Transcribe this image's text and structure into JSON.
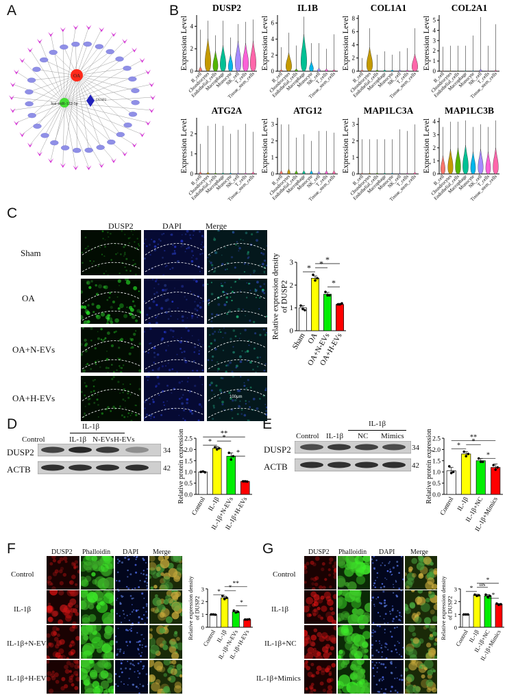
{
  "panels": {
    "A": {
      "label": "A",
      "nodes": {
        "center1": "OA",
        "center2": "hsa-miR-122-5p",
        "center3": "DUSP2"
      }
    },
    "B": {
      "label": "B",
      "ylabel": "Expression Level",
      "cell_types": [
        "B_cell",
        "Chondrocytes",
        "Endothelial_cells",
        "Macrophage",
        "Monocyte",
        "NK_cell",
        "T_cells",
        "Tissue_stem_cells"
      ],
      "genes": [
        {
          "name": "DUSP2",
          "yticks": [
            "0",
            "2",
            "4"
          ],
          "ymax": 5
        },
        {
          "name": "IL1B",
          "yticks": [
            "0",
            "2",
            "4",
            "6"
          ],
          "ymax": 7
        },
        {
          "name": "COL1A1",
          "yticks": [
            "0",
            "2",
            "4",
            "6",
            "8"
          ],
          "ymax": 8.5
        },
        {
          "name": "COL2A1",
          "yticks": [
            "0",
            "1",
            "2",
            "3",
            "4",
            "5"
          ],
          "ymax": 5.5
        },
        {
          "name": "ATG2A",
          "yticks": [
            "0",
            "1",
            "2"
          ],
          "ymax": 2.8
        },
        {
          "name": "ATG12",
          "yticks": [
            "0",
            "1",
            "2",
            "3"
          ],
          "ymax": 3.4
        },
        {
          "name": "MAP1LC3A",
          "yticks": [
            "0",
            "1",
            "2",
            "3"
          ],
          "ymax": 3.4
        },
        {
          "name": "MAP1LC3B",
          "yticks": [
            "0",
            "1",
            "2",
            "3",
            "4"
          ],
          "ymax": 4.3
        }
      ]
    },
    "C": {
      "label": "C",
      "columns": [
        "DUSP2",
        "DAPI",
        "Merge"
      ],
      "rows": [
        "Sham",
        "OA",
        "OA+N-EVs",
        "OA+H-EVs"
      ],
      "scalebar": "100μm"
    },
    "D": {
      "label": "D",
      "header": "IL-1β",
      "lanes": [
        "Control",
        "IL-1β",
        "N-EVs",
        "H-EVs"
      ],
      "blots": [
        {
          "name": "DUSP2",
          "kda": "34"
        },
        {
          "name": "ACTB",
          "kda": "42"
        }
      ]
    },
    "E": {
      "label": "E",
      "header": "IL-1β",
      "lanes": [
        "Control",
        "IL-1β",
        "NC",
        "Mimics"
      ],
      "blots": [
        {
          "name": "DUSP2",
          "kda": "34"
        },
        {
          "name": "ACTB",
          "kda": "42"
        }
      ]
    },
    "F": {
      "label": "F",
      "columns": [
        "DUSP2",
        "Phalloidin",
        "DAPI",
        "Merge"
      ],
      "rows": [
        "Control",
        "IL-1β",
        "IL-1β+N-EVs",
        "IL-1β+H-EVs"
      ]
    },
    "G": {
      "label": "G",
      "columns": [
        "DUSP2",
        "Phalloidin",
        "DAPI",
        "Merge"
      ],
      "rows": [
        "Control",
        "IL-1β",
        "IL-1β+NC",
        "IL-1β+Mimics"
      ]
    }
  },
  "chart_data": [
    {
      "id": "C",
      "type": "bar",
      "ylabel": "Relative expression density of DUSP2",
      "categories": [
        "Sham",
        "OA",
        "OA+N-EVs",
        "OA+H-EVs"
      ],
      "values": [
        1.0,
        2.3,
        1.6,
        1.15
      ],
      "errors": [
        0.1,
        0.1,
        0.08,
        0.05
      ],
      "points": [
        [
          1.1,
          0.95,
          0.9
        ],
        [
          2.45,
          2.2,
          2.3
        ],
        [
          1.7,
          1.55,
          1.55
        ],
        [
          1.15,
          1.15,
          1.2
        ]
      ],
      "colors": [
        "#ffffff",
        "#ffff00",
        "#00ee00",
        "#ff0000"
      ],
      "ylim": [
        0,
        3
      ],
      "yticks": [
        "0",
        "1",
        "2",
        "3"
      ],
      "sig": [
        {
          "a": 0,
          "b": 1,
          "label": "*"
        },
        {
          "a": 1,
          "b": 2,
          "label": "*"
        },
        {
          "a": 1,
          "b": 3,
          "label": "*"
        },
        {
          "a": 2,
          "b": 3,
          "label": "*"
        }
      ]
    },
    {
      "id": "D",
      "type": "bar",
      "ylabel": "Relative protein expression",
      "categories": [
        "Control",
        "IL-1β",
        "IL-1β+N-EVs",
        "IL-1β+H-EVs"
      ],
      "values": [
        1.0,
        2.05,
        1.7,
        0.58
      ],
      "errors": [
        0.03,
        0.08,
        0.15,
        0.03
      ],
      "points": [
        [
          1.0,
          1.02,
          0.98
        ],
        [
          2.1,
          2.0,
          2.05
        ],
        [
          1.85,
          1.55,
          1.7
        ],
        [
          0.58,
          0.58,
          0.57
        ]
      ],
      "colors": [
        "#ffffff",
        "#ffff00",
        "#00ee00",
        "#ff0000"
      ],
      "ylim": [
        0,
        2.5
      ],
      "yticks": [
        "0.0",
        "0.5",
        "1.0",
        "1.5",
        "2.0",
        "2.5"
      ],
      "sig": [
        {
          "a": 0,
          "b": 1,
          "label": "*"
        },
        {
          "a": 1,
          "b": 2,
          "label": "*"
        },
        {
          "a": 0,
          "b": 3,
          "label": "**"
        },
        {
          "a": 2,
          "b": 3,
          "label": "*"
        }
      ]
    },
    {
      "id": "E",
      "type": "bar",
      "ylabel": "Relative protein expression",
      "categories": [
        "Control",
        "IL-1β",
        "IL-1β+NC",
        "IL-1β+Mimics"
      ],
      "values": [
        1.05,
        1.8,
        1.5,
        1.2
      ],
      "errors": [
        0.15,
        0.1,
        0.1,
        0.15
      ],
      "points": [
        [
          1.25,
          0.95,
          1.0
        ],
        [
          1.9,
          1.7,
          1.8
        ],
        [
          1.6,
          1.45,
          1.45
        ],
        [
          1.3,
          1.1,
          1.2
        ]
      ],
      "colors": [
        "#ffffff",
        "#ffff00",
        "#00ee00",
        "#ff0000"
      ],
      "ylim": [
        0,
        2.5
      ],
      "yticks": [
        "0.0",
        "0.5",
        "1.0",
        "1.5",
        "2.0",
        "2.5"
      ],
      "sig": [
        {
          "a": 0,
          "b": 1,
          "label": "*"
        },
        {
          "a": 1,
          "b": 2,
          "label": "*"
        },
        {
          "a": 0,
          "b": 3,
          "label": "**"
        },
        {
          "a": 2,
          "b": 3,
          "label": "*"
        }
      ]
    },
    {
      "id": "F",
      "type": "bar",
      "ylabel": "Relative expression density of DUSP2",
      "categories": [
        "Control",
        "IL-1β",
        "IL-1β+N-EVs",
        "IL-1β+H-EVs"
      ],
      "values": [
        1.0,
        2.3,
        1.2,
        0.6
      ],
      "errors": [
        0.03,
        0.12,
        0.1,
        0.03
      ],
      "points": [
        [
          1.0,
          1.0,
          0.98
        ],
        [
          2.45,
          2.2,
          2.3
        ],
        [
          1.3,
          1.15,
          1.2
        ],
        [
          0.6,
          0.6,
          0.62
        ]
      ],
      "colors": [
        "#ffffff",
        "#ffff00",
        "#00ee00",
        "#ff0000"
      ],
      "ylim": [
        0,
        3
      ],
      "yticks": [
        "0",
        "1",
        "2",
        "3"
      ],
      "sig": [
        {
          "a": 0,
          "b": 1,
          "label": "*"
        },
        {
          "a": 1,
          "b": 2,
          "label": "*"
        },
        {
          "a": 1,
          "b": 3,
          "label": "**"
        },
        {
          "a": 2,
          "b": 3,
          "label": "*"
        }
      ]
    },
    {
      "id": "G",
      "type": "bar",
      "ylabel": "Relative expression density of DUSP2",
      "categories": [
        "Control",
        "IL-1β",
        "IL-1β+NC",
        "IL-1β+Mimics"
      ],
      "values": [
        1.0,
        2.5,
        2.45,
        1.8
      ],
      "errors": [
        0.03,
        0.08,
        0.1,
        0.05
      ],
      "points": [
        [
          1.0,
          1.0,
          1.0
        ],
        [
          2.55,
          2.45,
          2.5
        ],
        [
          2.55,
          2.35,
          2.45
        ],
        [
          1.85,
          1.75,
          1.8
        ]
      ],
      "colors": [
        "#ffffff",
        "#ffff00",
        "#00ee00",
        "#ff0000"
      ],
      "ylim": [
        0,
        3
      ],
      "yticks": [
        "0",
        "1",
        "2",
        "3"
      ],
      "sig": [
        {
          "a": 0,
          "b": 1,
          "label": "*"
        },
        {
          "a": 1,
          "b": 2,
          "label": "ns"
        },
        {
          "a": 1,
          "b": 3,
          "label": "*"
        },
        {
          "a": 2,
          "b": 3,
          "label": "*"
        }
      ]
    }
  ]
}
